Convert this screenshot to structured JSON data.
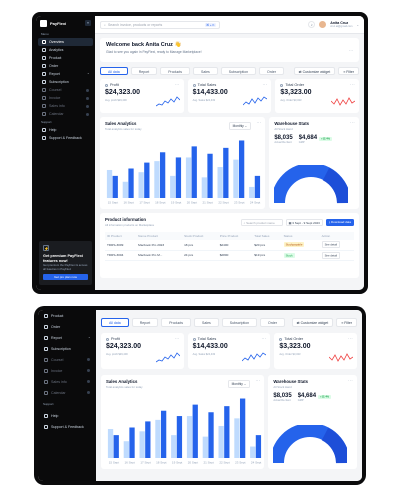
{
  "brand": {
    "name": "PayFlexi"
  },
  "sidebar": {
    "menu_label": "Menu",
    "items": [
      {
        "label": "Overview",
        "active": true
      },
      {
        "label": "Analytics"
      },
      {
        "label": "Product"
      },
      {
        "label": "Order"
      },
      {
        "label": "Report",
        "chevron": "^"
      },
      {
        "label": "Subscription"
      },
      {
        "label": "Coursel",
        "dim": true
      },
      {
        "label": "Invoice",
        "dim": true
      },
      {
        "label": "Sales info",
        "dim": true
      },
      {
        "label": "Calendar",
        "dim": true
      }
    ],
    "support_label": "Support",
    "support_items": [
      {
        "label": "Help"
      },
      {
        "label": "Support & Feedback"
      }
    ],
    "promo": {
      "title": "Get premium PayFlexi features now!",
      "text": "Get premium the PayFlexi & access all feautres in PayFlexi",
      "button": "Get pro plan now"
    }
  },
  "topbar": {
    "search_placeholder": "Search invoice, products or reports",
    "shortcut": "⌘ + K",
    "user_name": "Anita Cruz",
    "user_email": "cruz.at@gmail.com"
  },
  "welcome": {
    "title": "Welcome back Anita Cruz 👋",
    "subtitle": "Glad to see you again in PayFlexi, ready to Manage Marketplace!"
  },
  "tabs": [
    "All data",
    "Report",
    "Products",
    "Sales",
    "Subscription",
    "Order"
  ],
  "actions": {
    "customize": "Customize widget",
    "filter": "Filter"
  },
  "cards": [
    {
      "title": "Profit",
      "value": "$24,323.00",
      "sub": "Avg. profit $29,400"
    },
    {
      "title": "Total Sales",
      "value": "$14,433.00",
      "sub": "Avg. Sales $24,433"
    },
    {
      "title": "Total Order",
      "value": "$3,323.00",
      "sub": "Avg. Order $3,323"
    }
  ],
  "sales": {
    "title": "Sales Analytics",
    "subtitle": "Total analytics sales for today",
    "period": "Monthly",
    "chart_data": {
      "type": "bar",
      "categories": [
        "15 Sept",
        "16 Sept",
        "17 Sept",
        "18 Sept",
        "19 Sept",
        "20 Sept",
        "21 Sept",
        "22 Sept",
        "23 Sept",
        "24 Sept"
      ],
      "series": [
        {
          "values": [
            38,
            22,
            35,
            50,
            30,
            55,
            28,
            42,
            52,
            15
          ]
        },
        {
          "values": [
            30,
            40,
            48,
            62,
            55,
            70,
            60,
            68,
            78,
            30
          ]
        }
      ],
      "ylim": [
        0,
        80
      ]
    }
  },
  "warehouse": {
    "title": "Warehouse Stats",
    "subtitle": "All Stock Hand",
    "v1": "$8,035",
    "l1": "Actual Re-Sent",
    "v2": "$4,684",
    "badge": "+12.4%",
    "l2": "GMP"
  },
  "products": {
    "title": "Product information",
    "subtitle": "All information products on Marketplace",
    "search_placeholder": "Search product name",
    "date_range": "3 Sept - 9 Sept 2023",
    "download": "Download data",
    "columns": [
      "ID Product",
      "Name Product",
      "Stock Product",
      "Price Product",
      "Total Sales",
      "Status",
      "Action"
    ],
    "rows": [
      [
        "TDRS-3009",
        "Macbook Pro 2023",
        "18 pcs",
        "$2400",
        "$20 pcs",
        "Stockpayable",
        "See detail"
      ],
      [
        "TDRS-3004",
        "Macbook Pro M...",
        "24 pcs",
        "$2800",
        "$19 pcs",
        "Stock",
        "See detail"
      ]
    ]
  },
  "colors": {
    "accent": "#2563eb",
    "accent_light": "#bfdbfe",
    "dark": "#0b0b0c"
  }
}
